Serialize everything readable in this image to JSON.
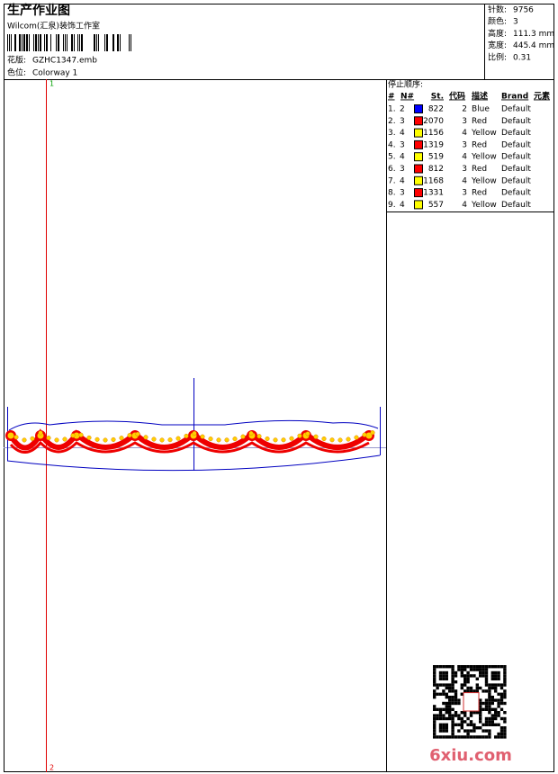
{
  "header": {
    "title": "生产作业图",
    "subtitle": "Wilcom(汇泉)装饰工作室",
    "file": {
      "label": "花版:",
      "value": "GZHC1347.emb"
    },
    "colorway": {
      "label": "色位:",
      "value": "Colorway 1"
    }
  },
  "stats": [
    {
      "label": "针数:",
      "value": "9756"
    },
    {
      "label": "颜色:",
      "value": "3"
    },
    {
      "label": "高度:",
      "value": "111.3 mm"
    },
    {
      "label": "宽度:",
      "value": "445.4 mm"
    },
    {
      "label": "比例:",
      "value": "0.31"
    }
  ],
  "stop_sequence": {
    "title": "停止顺序:",
    "columns": [
      "#",
      "N#",
      "St.",
      "代码",
      "描述",
      "Brand",
      "元素"
    ],
    "rows": [
      {
        "num": "1.",
        "n": "2",
        "color": "#0000ff",
        "st": "822",
        "code": "2",
        "desc": "Blue",
        "brand": "Default"
      },
      {
        "num": "2.",
        "n": "3",
        "color": "#ff0000",
        "st": "2070",
        "code": "3",
        "desc": "Red",
        "brand": "Default"
      },
      {
        "num": "3.",
        "n": "4",
        "color": "#ffff00",
        "st": "1156",
        "code": "4",
        "desc": "Yellow",
        "brand": "Default"
      },
      {
        "num": "4.",
        "n": "3",
        "color": "#ff0000",
        "st": "1319",
        "code": "3",
        "desc": "Red",
        "brand": "Default"
      },
      {
        "num": "5.",
        "n": "4",
        "color": "#ffff00",
        "st": "519",
        "code": "4",
        "desc": "Yellow",
        "brand": "Default"
      },
      {
        "num": "6.",
        "n": "3",
        "color": "#ff0000",
        "st": "812",
        "code": "3",
        "desc": "Red",
        "brand": "Default"
      },
      {
        "num": "7.",
        "n": "4",
        "color": "#ffff00",
        "st": "1168",
        "code": "4",
        "desc": "Yellow",
        "brand": "Default"
      },
      {
        "num": "8.",
        "n": "3",
        "color": "#ff0000",
        "st": "1331",
        "code": "3",
        "desc": "Red",
        "brand": "Default"
      },
      {
        "num": "9.",
        "n": "4",
        "color": "#ffff00",
        "st": "557",
        "code": "4",
        "desc": "Yellow",
        "brand": "Default"
      }
    ]
  },
  "canvas": {
    "marker_top": "1",
    "marker_bottom": "2"
  },
  "watermark": "6xiu.com"
}
